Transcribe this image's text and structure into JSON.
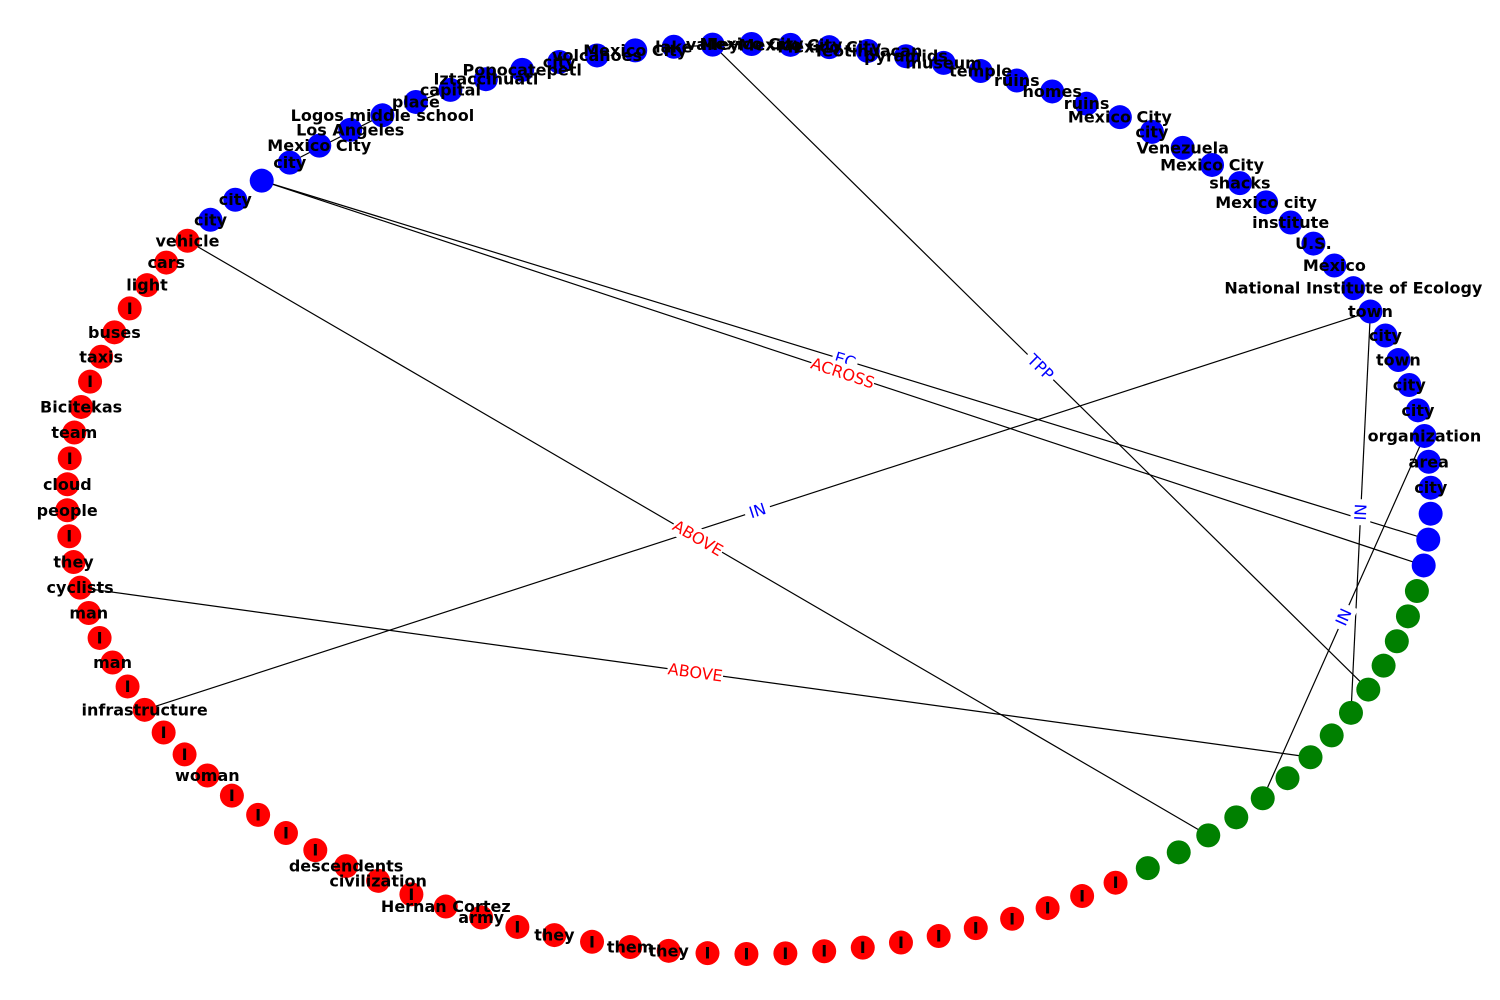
{
  "chart_data": {
    "type": "network-graph",
    "layout": "circular",
    "colors": {
      "blue": "#0000ff",
      "red": "#ff0000",
      "green": "#008000",
      "edge": "#000000",
      "label_red": "#ff0000",
      "label_blue": "#0000ff"
    },
    "nodes": [
      {
        "id": "b1",
        "label": "Mexico City",
        "color": "blue"
      },
      {
        "id": "b2",
        "label": "Teotihuacan",
        "color": "blue"
      },
      {
        "id": "b3",
        "label": "pyramids",
        "color": "blue"
      },
      {
        "id": "b4",
        "label": "museum",
        "color": "blue"
      },
      {
        "id": "b5",
        "label": "temple",
        "color": "blue"
      },
      {
        "id": "b6",
        "label": "ruins",
        "color": "blue"
      },
      {
        "id": "b7",
        "label": "homes",
        "color": "blue"
      },
      {
        "id": "b8",
        "label": "ruins",
        "color": "blue"
      },
      {
        "id": "b9",
        "label": "Mexico City",
        "color": "blue"
      },
      {
        "id": "b10",
        "label": "city",
        "color": "blue"
      },
      {
        "id": "b11",
        "label": "Venezuela",
        "color": "blue"
      },
      {
        "id": "b12",
        "label": "Mexico City",
        "color": "blue"
      },
      {
        "id": "b13",
        "label": "shacks",
        "color": "blue"
      },
      {
        "id": "b14",
        "label": "Mexico city",
        "color": "blue"
      },
      {
        "id": "b15",
        "label": "institute",
        "color": "blue"
      },
      {
        "id": "b16",
        "label": "U.S.",
        "color": "blue"
      },
      {
        "id": "b17",
        "label": "Mexico",
        "color": "blue"
      },
      {
        "id": "b18",
        "label": "National Institute of Ecology",
        "color": "blue"
      },
      {
        "id": "b19",
        "label": "town",
        "color": "blue"
      },
      {
        "id": "b20",
        "label": "city",
        "color": "blue"
      },
      {
        "id": "b21",
        "label": "town",
        "color": "blue"
      },
      {
        "id": "b22",
        "label": "city",
        "color": "blue"
      },
      {
        "id": "b23",
        "label": "city",
        "color": "blue"
      },
      {
        "id": "b24",
        "label": "organization",
        "color": "blue"
      },
      {
        "id": "b25",
        "label": "area",
        "color": "blue"
      },
      {
        "id": "b26",
        "label": "city",
        "color": "blue"
      },
      {
        "id": "b27",
        "label": "",
        "color": "blue"
      },
      {
        "id": "b28",
        "label": "",
        "color": "blue"
      },
      {
        "id": "b29",
        "label": "",
        "color": "blue"
      },
      {
        "id": "g1",
        "label": "",
        "color": "green"
      },
      {
        "id": "g2",
        "label": "",
        "color": "green"
      },
      {
        "id": "g3",
        "label": "",
        "color": "green"
      },
      {
        "id": "g4",
        "label": "",
        "color": "green"
      },
      {
        "id": "g5",
        "label": "",
        "color": "green"
      },
      {
        "id": "g6",
        "label": "",
        "color": "green"
      },
      {
        "id": "g7",
        "label": "",
        "color": "green"
      },
      {
        "id": "g8",
        "label": "",
        "color": "green"
      },
      {
        "id": "g9",
        "label": "",
        "color": "green"
      },
      {
        "id": "g10",
        "label": "",
        "color": "green"
      },
      {
        "id": "g11",
        "label": "",
        "color": "green"
      },
      {
        "id": "g12",
        "label": "",
        "color": "green"
      },
      {
        "id": "g13",
        "label": "",
        "color": "green"
      },
      {
        "id": "g14",
        "label": "",
        "color": "green"
      },
      {
        "id": "r1",
        "label": "I",
        "color": "red"
      },
      {
        "id": "r2",
        "label": "I",
        "color": "red"
      },
      {
        "id": "r3",
        "label": "I",
        "color": "red"
      },
      {
        "id": "r4",
        "label": "I",
        "color": "red"
      },
      {
        "id": "r5",
        "label": "I",
        "color": "red"
      },
      {
        "id": "r6",
        "label": "I",
        "color": "red"
      },
      {
        "id": "r7",
        "label": "I",
        "color": "red"
      },
      {
        "id": "r8",
        "label": "I",
        "color": "red"
      },
      {
        "id": "r9",
        "label": "I",
        "color": "red"
      },
      {
        "id": "r10",
        "label": "I",
        "color": "red"
      },
      {
        "id": "r11",
        "label": "I",
        "color": "red"
      },
      {
        "id": "r12",
        "label": "I",
        "color": "red"
      },
      {
        "id": "r13",
        "label": "they",
        "color": "red"
      },
      {
        "id": "r14",
        "label": "them",
        "color": "red"
      },
      {
        "id": "r15",
        "label": "I",
        "color": "red"
      },
      {
        "id": "r16",
        "label": "they",
        "color": "red"
      },
      {
        "id": "r17",
        "label": "I",
        "color": "red"
      },
      {
        "id": "r18",
        "label": "army",
        "color": "red"
      },
      {
        "id": "r19",
        "label": "Hernan Cortez",
        "color": "red"
      },
      {
        "id": "r20",
        "label": "I",
        "color": "red"
      },
      {
        "id": "r21",
        "label": "civilization",
        "color": "red"
      },
      {
        "id": "r22",
        "label": "descendents",
        "color": "red"
      },
      {
        "id": "r23",
        "label": "I",
        "color": "red"
      },
      {
        "id": "r24",
        "label": "I",
        "color": "red"
      },
      {
        "id": "r25",
        "label": "I",
        "color": "red"
      },
      {
        "id": "r26",
        "label": "I",
        "color": "red"
      },
      {
        "id": "r27",
        "label": "woman",
        "color": "red"
      },
      {
        "id": "r28",
        "label": "I",
        "color": "red"
      },
      {
        "id": "r29",
        "label": "I",
        "color": "red"
      },
      {
        "id": "r30",
        "label": "infrastructure",
        "color": "red"
      },
      {
        "id": "r31",
        "label": "I",
        "color": "red"
      },
      {
        "id": "r32",
        "label": "man",
        "color": "red"
      },
      {
        "id": "r33",
        "label": "I",
        "color": "red"
      },
      {
        "id": "r34",
        "label": "man",
        "color": "red"
      },
      {
        "id": "r35",
        "label": "cyclists",
        "color": "red"
      },
      {
        "id": "r36",
        "label": "they",
        "color": "red"
      },
      {
        "id": "r37",
        "label": "I",
        "color": "red"
      },
      {
        "id": "r38",
        "label": "people",
        "color": "red"
      },
      {
        "id": "r39",
        "label": "cloud",
        "color": "red"
      },
      {
        "id": "r40",
        "label": "I",
        "color": "red"
      },
      {
        "id": "r41",
        "label": "team",
        "color": "red"
      },
      {
        "id": "r42",
        "label": "Bicitekas",
        "color": "red"
      },
      {
        "id": "r43",
        "label": "I",
        "color": "red"
      },
      {
        "id": "r44",
        "label": "taxis",
        "color": "red"
      },
      {
        "id": "r45",
        "label": "buses",
        "color": "red"
      },
      {
        "id": "r46",
        "label": "I",
        "color": "red"
      },
      {
        "id": "r47",
        "label": "light",
        "color": "red"
      },
      {
        "id": "r48",
        "label": "cars",
        "color": "red"
      },
      {
        "id": "r49",
        "label": "vehicle",
        "color": "red"
      },
      {
        "id": "b30",
        "label": "city",
        "color": "blue"
      },
      {
        "id": "b31",
        "label": "city",
        "color": "blue"
      },
      {
        "id": "b32",
        "label": "",
        "color": "blue"
      },
      {
        "id": "b33",
        "label": "city",
        "color": "blue"
      },
      {
        "id": "b34",
        "label": "Mexico City",
        "color": "blue"
      },
      {
        "id": "b35",
        "label": "Los Angeles",
        "color": "blue"
      },
      {
        "id": "b36",
        "label": "Logos middle school",
        "color": "blue"
      },
      {
        "id": "b37",
        "label": "place",
        "color": "blue"
      },
      {
        "id": "b38",
        "label": "capital",
        "color": "blue"
      },
      {
        "id": "b39",
        "label": "Iztaccihuatl",
        "color": "blue"
      },
      {
        "id": "b40",
        "label": "Popocatepetl",
        "color": "blue"
      },
      {
        "id": "b41",
        "label": "city",
        "color": "blue"
      },
      {
        "id": "b42",
        "label": "volcanoes",
        "color": "blue"
      },
      {
        "id": "b43",
        "label": "Mexico City",
        "color": "blue"
      },
      {
        "id": "b44",
        "label": "lake",
        "color": "blue"
      },
      {
        "id": "b45",
        "label": "valley",
        "color": "blue"
      },
      {
        "id": "b46",
        "label": "Mexico City",
        "color": "blue"
      },
      {
        "id": "b47",
        "label": "Mexico City",
        "color": "blue"
      }
    ],
    "edges": [
      {
        "source": "b45",
        "target": "g5",
        "label": "TPP",
        "label_color": "label_blue"
      },
      {
        "source": "b32",
        "target": "b28",
        "label": "EC",
        "label_color": "label_blue"
      },
      {
        "source": "b32",
        "target": "b29",
        "label": "ACROSS",
        "label_color": "label_red"
      },
      {
        "source": "b49_dummy",
        "target": "",
        "label": "",
        "label_color": "label_red"
      },
      {
        "source": "r49",
        "target": "g12",
        "label": "ABOVE",
        "label_color": "label_red"
      },
      {
        "source": "r30",
        "target": "b19",
        "label": "IN",
        "label_color": "label_blue"
      },
      {
        "source": "r35",
        "target": "g8",
        "label": "ABOVE",
        "label_color": "label_red"
      },
      {
        "source": "b19",
        "target": "g6",
        "label": "IN",
        "label_color": "label_blue"
      },
      {
        "source": "b24",
        "target": "g10",
        "label": "IN",
        "label_color": "label_blue"
      },
      {
        "source": "b33",
        "target": "b36",
        "label": "",
        "label_color": "label_red"
      },
      {
        "source": "b37",
        "target": "b38",
        "label": "",
        "label_color": "label_red"
      },
      {
        "source": "b44",
        "target": "b46",
        "label": "",
        "label_color": "label_blue"
      }
    ]
  }
}
